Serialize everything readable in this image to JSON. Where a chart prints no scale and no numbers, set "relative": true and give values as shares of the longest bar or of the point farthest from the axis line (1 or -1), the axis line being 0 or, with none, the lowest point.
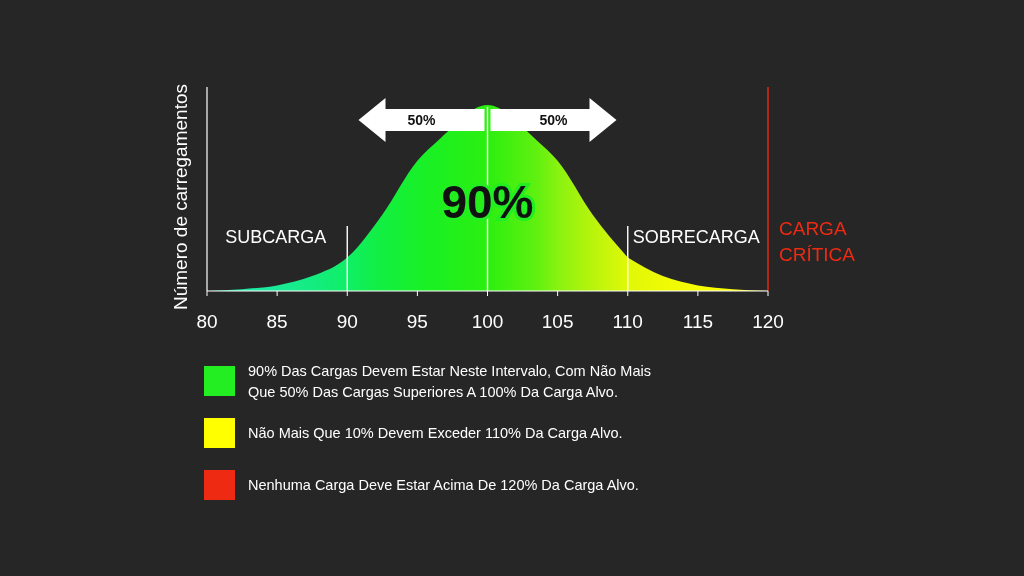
{
  "chart_data": {
    "type": "area",
    "relative": true,
    "ylabel": "Número de carregamentos",
    "xlim": [
      80,
      120
    ],
    "xticks": [
      80,
      85,
      90,
      95,
      100,
      105,
      110,
      115,
      120
    ],
    "legend": "bottom",
    "series": [
      {
        "name": "90% Das Cargas Devem Estar Neste Intervalo, Com Não Mais Que 50% Das Cargas Superiores A 100% Da Carga Alvo.",
        "color": "#22ee22",
        "x": [
          80,
          82.5,
          85,
          87.5,
          90,
          92.5,
          95,
          96.5,
          100,
          103.5,
          105,
          107.5,
          110
        ],
        "values": [
          0,
          0.01,
          0.03,
          0.08,
          0.18,
          0.41,
          0.7,
          0.81,
          1,
          0.81,
          0.7,
          0.41,
          0.18
        ],
        "colors": [
          "#20e8b8",
          "#1ee9a8",
          "#1aea98",
          "#14ec80",
          "#10ee66",
          "#12ef40",
          "#18f02a",
          "#1cf020",
          "#2cef10",
          "#60f010",
          "#88f210",
          "#b8f40c",
          "#e0f808"
        ]
      },
      {
        "type": "area",
        "name": "Não Mais Que 10% Devem Exceder 110% Da Carga Alvo.",
        "color": "#ffff00",
        "x": [
          110,
          112.5,
          115,
          117.5,
          120
        ],
        "values": [
          0.18,
          0.08,
          0.03,
          0.01,
          0
        ],
        "colors": [
          "#e0f808",
          "#eefa04",
          "#f6fc02",
          "#fcfe00",
          "#ffff00"
        ]
      }
    ],
    "ref_lines": [
      {
        "axis": "x",
        "value": 90,
        "label": "SUBCARGA",
        "color": "#ffffff"
      },
      {
        "axis": "x",
        "value": 100,
        "color": "#ffffff"
      },
      {
        "axis": "x",
        "value": 110,
        "label": "SOBRECARGA",
        "color": "#ffffff"
      },
      {
        "axis": "x",
        "value": 120,
        "label": "CARGA CRÍTICA",
        "color": "#ee2a12"
      }
    ],
    "annotations": [
      "50%",
      "50%",
      {
        "text": "90%",
        "x": 100,
        "y": 0.49
      },
      "Nenhuma Carga Deve Estar Acima De 120% Da Carga Alvo."
    ]
  }
}
